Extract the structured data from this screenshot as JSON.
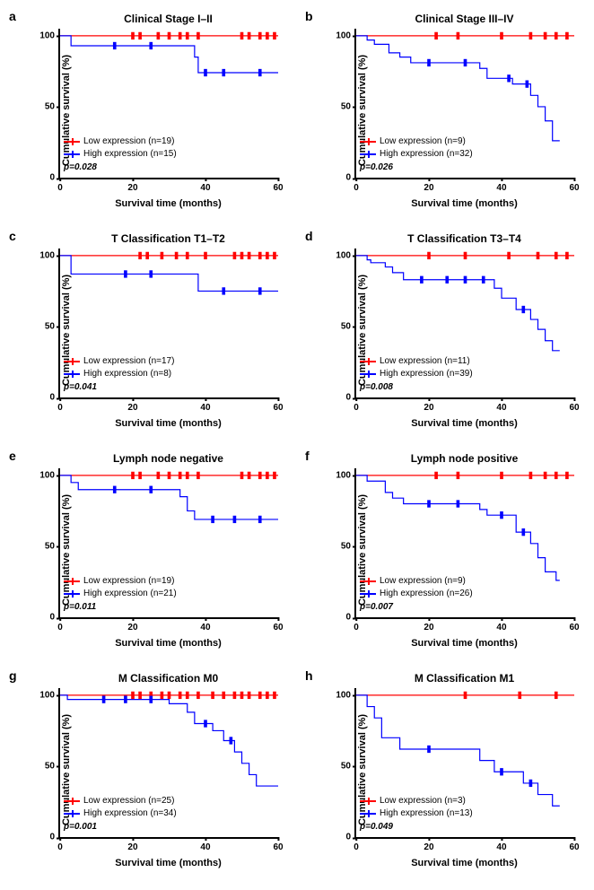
{
  "global": {
    "ylabel": "Cumulative survival (%)",
    "xlabel": "Survival time (months)",
    "low_label_prefix": "Low expression",
    "high_label_prefix": "High expression",
    "low_color": "#ff0000",
    "high_color": "#0000ff",
    "line_width": 2,
    "ylim": [
      0,
      105
    ],
    "xlim": [
      0,
      60
    ],
    "yticks": [
      0,
      50,
      100
    ],
    "xticks": [
      0,
      20,
      40,
      60
    ],
    "tick_fontsize": 10,
    "label_fontsize": 11,
    "title_fontsize": 12
  },
  "panels": [
    {
      "id": "a",
      "title": "Clinical Stage I–II",
      "low_n": 19,
      "high_n": 15,
      "p": "0.028",
      "low_steps": [
        [
          0,
          100
        ],
        [
          60,
          100
        ]
      ],
      "low_censor": [
        20,
        22,
        27,
        30,
        33,
        35,
        38,
        50,
        52,
        55,
        57,
        59
      ],
      "high_steps": [
        [
          0,
          100
        ],
        [
          3,
          100
        ],
        [
          3,
          93
        ],
        [
          37,
          93
        ],
        [
          37,
          85
        ],
        [
          38,
          85
        ],
        [
          38,
          74
        ],
        [
          60,
          74
        ]
      ],
      "high_censor": [
        15,
        25,
        40,
        45,
        55
      ]
    },
    {
      "id": "b",
      "title": "Clinical Stage III–IV",
      "low_n": 9,
      "high_n": 32,
      "p": "0.026",
      "low_steps": [
        [
          0,
          100
        ],
        [
          60,
          100
        ]
      ],
      "low_censor": [
        22,
        28,
        40,
        48,
        52,
        55,
        58
      ],
      "high_steps": [
        [
          0,
          100
        ],
        [
          3,
          100
        ],
        [
          3,
          97
        ],
        [
          5,
          97
        ],
        [
          5,
          94
        ],
        [
          9,
          94
        ],
        [
          9,
          88
        ],
        [
          12,
          88
        ],
        [
          12,
          85
        ],
        [
          15,
          85
        ],
        [
          15,
          81
        ],
        [
          34,
          81
        ],
        [
          34,
          77
        ],
        [
          36,
          77
        ],
        [
          36,
          70
        ],
        [
          43,
          70
        ],
        [
          43,
          66
        ],
        [
          48,
          66
        ],
        [
          48,
          58
        ],
        [
          50,
          58
        ],
        [
          50,
          50
        ],
        [
          52,
          50
        ],
        [
          52,
          40
        ],
        [
          54,
          40
        ],
        [
          54,
          26
        ],
        [
          56,
          26
        ]
      ],
      "high_censor": [
        20,
        30,
        42,
        47
      ]
    },
    {
      "id": "c",
      "title": "T Classification T1–T2",
      "low_n": 17,
      "high_n": 8,
      "p": "0.041",
      "low_steps": [
        [
          0,
          100
        ],
        [
          60,
          100
        ]
      ],
      "low_censor": [
        22,
        24,
        28,
        32,
        35,
        40,
        48,
        50,
        52,
        55,
        57,
        59
      ],
      "high_steps": [
        [
          0,
          100
        ],
        [
          3,
          100
        ],
        [
          3,
          87
        ],
        [
          38,
          87
        ],
        [
          38,
          75
        ],
        [
          60,
          75
        ]
      ],
      "high_censor": [
        18,
        25,
        45,
        55
      ]
    },
    {
      "id": "d",
      "title": "T Classification T3–T4",
      "low_n": 11,
      "high_n": 39,
      "p": "0.008",
      "low_steps": [
        [
          0,
          100
        ],
        [
          60,
          100
        ]
      ],
      "low_censor": [
        20,
        30,
        42,
        50,
        55,
        58
      ],
      "high_steps": [
        [
          0,
          100
        ],
        [
          3,
          100
        ],
        [
          3,
          97
        ],
        [
          4,
          97
        ],
        [
          4,
          95
        ],
        [
          8,
          95
        ],
        [
          8,
          92
        ],
        [
          10,
          92
        ],
        [
          10,
          88
        ],
        [
          13,
          88
        ],
        [
          13,
          83
        ],
        [
          38,
          83
        ],
        [
          38,
          77
        ],
        [
          40,
          77
        ],
        [
          40,
          70
        ],
        [
          44,
          70
        ],
        [
          44,
          62
        ],
        [
          48,
          62
        ],
        [
          48,
          55
        ],
        [
          50,
          55
        ],
        [
          50,
          48
        ],
        [
          52,
          48
        ],
        [
          52,
          40
        ],
        [
          54,
          40
        ],
        [
          54,
          33
        ],
        [
          56,
          33
        ]
      ],
      "high_censor": [
        18,
        25,
        30,
        35,
        46
      ]
    },
    {
      "id": "e",
      "title": "Lymph node negative",
      "low_n": 19,
      "high_n": 21,
      "p": "0.011",
      "low_steps": [
        [
          0,
          100
        ],
        [
          60,
          100
        ]
      ],
      "low_censor": [
        20,
        22,
        27,
        30,
        33,
        35,
        38,
        50,
        52,
        55,
        57,
        59
      ],
      "high_steps": [
        [
          0,
          100
        ],
        [
          3,
          100
        ],
        [
          3,
          95
        ],
        [
          5,
          95
        ],
        [
          5,
          90
        ],
        [
          33,
          90
        ],
        [
          33,
          85
        ],
        [
          35,
          85
        ],
        [
          35,
          75
        ],
        [
          37,
          75
        ],
        [
          37,
          69
        ],
        [
          60,
          69
        ]
      ],
      "high_censor": [
        15,
        25,
        42,
        48,
        55
      ]
    },
    {
      "id": "f",
      "title": "Lymph node positive",
      "low_n": 9,
      "high_n": 26,
      "p": "0.007",
      "low_steps": [
        [
          0,
          100
        ],
        [
          60,
          100
        ]
      ],
      "low_censor": [
        22,
        28,
        40,
        48,
        52,
        55,
        58
      ],
      "high_steps": [
        [
          0,
          100
        ],
        [
          3,
          100
        ],
        [
          3,
          96
        ],
        [
          8,
          96
        ],
        [
          8,
          88
        ],
        [
          10,
          88
        ],
        [
          10,
          84
        ],
        [
          13,
          84
        ],
        [
          13,
          80
        ],
        [
          34,
          80
        ],
        [
          34,
          76
        ],
        [
          36,
          76
        ],
        [
          36,
          72
        ],
        [
          44,
          72
        ],
        [
          44,
          60
        ],
        [
          48,
          60
        ],
        [
          48,
          52
        ],
        [
          50,
          52
        ],
        [
          50,
          42
        ],
        [
          52,
          42
        ],
        [
          52,
          32
        ],
        [
          55,
          32
        ],
        [
          55,
          26
        ],
        [
          56,
          26
        ]
      ],
      "high_censor": [
        20,
        28,
        40,
        46
      ]
    },
    {
      "id": "g",
      "title": "M Classification M0",
      "low_n": 25,
      "high_n": 34,
      "p": "0.001",
      "low_steps": [
        [
          0,
          100
        ],
        [
          60,
          100
        ]
      ],
      "low_censor": [
        20,
        22,
        25,
        28,
        30,
        33,
        35,
        38,
        42,
        45,
        48,
        50,
        52,
        55,
        57,
        59
      ],
      "high_steps": [
        [
          0,
          100
        ],
        [
          2,
          100
        ],
        [
          2,
          97
        ],
        [
          30,
          97
        ],
        [
          30,
          94
        ],
        [
          35,
          94
        ],
        [
          35,
          88
        ],
        [
          37,
          88
        ],
        [
          37,
          80
        ],
        [
          42,
          80
        ],
        [
          42,
          75
        ],
        [
          45,
          75
        ],
        [
          45,
          68
        ],
        [
          48,
          68
        ],
        [
          48,
          60
        ],
        [
          50,
          60
        ],
        [
          50,
          52
        ],
        [
          52,
          52
        ],
        [
          52,
          44
        ],
        [
          54,
          44
        ],
        [
          54,
          36
        ],
        [
          60,
          36
        ]
      ],
      "high_censor": [
        12,
        18,
        25,
        40,
        47
      ]
    },
    {
      "id": "h",
      "title": "M Classification M1",
      "low_n": 3,
      "high_n": 13,
      "p": "0.049",
      "low_steps": [
        [
          0,
          100
        ],
        [
          60,
          100
        ]
      ],
      "low_censor": [
        30,
        45,
        55
      ],
      "high_steps": [
        [
          0,
          100
        ],
        [
          3,
          100
        ],
        [
          3,
          92
        ],
        [
          5,
          92
        ],
        [
          5,
          84
        ],
        [
          7,
          84
        ],
        [
          7,
          70
        ],
        [
          12,
          70
        ],
        [
          12,
          62
        ],
        [
          34,
          62
        ],
        [
          34,
          54
        ],
        [
          38,
          54
        ],
        [
          38,
          46
        ],
        [
          46,
          46
        ],
        [
          46,
          38
        ],
        [
          50,
          38
        ],
        [
          50,
          30
        ],
        [
          54,
          30
        ],
        [
          54,
          22
        ],
        [
          56,
          22
        ]
      ],
      "high_censor": [
        20,
        40,
        48
      ]
    }
  ]
}
